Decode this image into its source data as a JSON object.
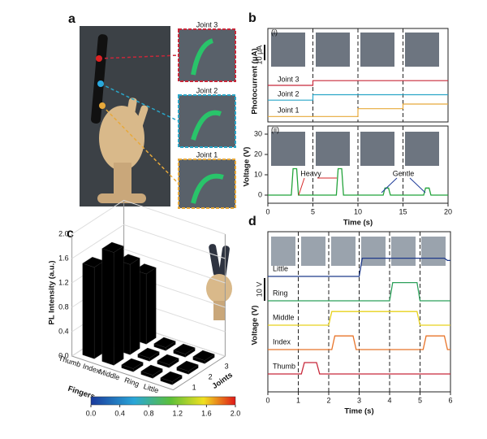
{
  "panel_a": {
    "label": "a",
    "joint_labels": [
      "Joint 3",
      "Joint 2",
      "Joint 1"
    ],
    "joint_colors": [
      "#c8283a",
      "#2aa6c8",
      "#e8a93a"
    ]
  },
  "chart_data": [
    {
      "type": "line",
      "panel": "b",
      "sublabel": "(i)",
      "ylabel": "Photocurrent (μA)",
      "scale_bar": {
        "value": 10,
        "label": "10 μA"
      },
      "x": [
        0,
        5,
        5,
        10,
        10,
        15,
        15,
        20
      ],
      "xlim": [
        0,
        20
      ],
      "ylim": [
        0,
        60
      ],
      "vlines": [
        5,
        10,
        15
      ],
      "series": [
        {
          "name": "Joint 3",
          "color": "#c8283a",
          "values": [
            23.5,
            23.5,
            26.5,
            26.5,
            26.5,
            26.5,
            26.5,
            26.5
          ]
        },
        {
          "name": "Joint 2",
          "color": "#2aa6c8",
          "values": [
            14,
            14,
            17.5,
            17.5,
            17.5,
            17.5,
            17.5,
            17.5
          ]
        },
        {
          "name": "Joint 1",
          "color": "#e8a93a",
          "values": [
            3.5,
            3.5,
            3.5,
            3.5,
            8.5,
            8.5,
            11.5,
            11.5
          ]
        }
      ]
    },
    {
      "type": "line",
      "sublabel": "(ii)",
      "ylabel": "Voltage (V)",
      "xlabel": "Time (s)",
      "x": [
        0,
        2.6,
        2.8,
        3.2,
        3.4,
        7.6,
        7.8,
        8.2,
        8.4,
        12.8,
        13,
        13.4,
        13.6,
        17.3,
        17.5,
        17.9,
        18.1,
        20
      ],
      "xlim": [
        0,
        20
      ],
      "xticks": [
        0,
        5,
        10,
        15,
        20
      ],
      "ylim": [
        -4,
        34
      ],
      "yticks": [
        0,
        10,
        20,
        30
      ],
      "vlines": [
        5,
        10,
        15
      ],
      "series": [
        {
          "color": "#22a33a",
          "values": [
            0,
            0,
            13,
            13,
            0,
            0,
            13,
            13,
            0,
            0,
            3.5,
            3.5,
            0,
            0,
            3.5,
            3.5,
            0,
            0
          ]
        }
      ],
      "annotations": [
        {
          "text": "Heavy",
          "color": "#d62728"
        },
        {
          "text": "Gentle",
          "color": "#1f3c99"
        }
      ]
    },
    {
      "type": "bar3d",
      "panel": "c",
      "categories": [
        "Thumb",
        "Index",
        "Middle",
        "Ring",
        "Little"
      ],
      "joints": [
        "1",
        "2",
        "3"
      ],
      "values": [
        [
          1.5,
          1.35,
          0.05
        ],
        [
          1.85,
          1.48,
          1.15
        ],
        [
          0.05,
          0.05,
          0.05
        ],
        [
          0.05,
          0.05,
          0.05
        ],
        [
          0.05,
          0.05,
          0.05
        ]
      ],
      "xlabel": "Fingers",
      "ylabel": "Joints",
      "zlabel": "PL Intensity (a.u.)",
      "zlim": [
        0,
        2
      ],
      "zticks": [
        {
          "value": 0,
          "label": "0.0"
        },
        {
          "value": 0.4,
          "label": "0.4"
        },
        {
          "value": 0.8,
          "label": "0.8"
        },
        {
          "value": 1.2,
          "label": "1.2"
        },
        {
          "value": 1.6,
          "label": "1.6"
        },
        {
          "value": 2,
          "label": "2.0"
        }
      ],
      "clim": [
        0,
        2
      ],
      "colorbar_ticks": [
        {
          "value": 0,
          "label": "0.0"
        },
        {
          "value": 0.4,
          "label": "0.4"
        },
        {
          "value": 0.8,
          "label": "0.8"
        },
        {
          "value": 1.2,
          "label": "1.2"
        },
        {
          "value": 1.6,
          "label": "1.6"
        },
        {
          "value": 2,
          "label": "2.0"
        }
      ]
    },
    {
      "type": "line",
      "panel": "d",
      "ylabel": "Voltage (V)",
      "xlabel": "Time (s)",
      "scale_bar": {
        "value": 10,
        "label": "10 V"
      },
      "xlim": [
        0,
        6
      ],
      "xticks": [
        0,
        1,
        2,
        3,
        4,
        5,
        6
      ],
      "vlines": [
        1,
        2,
        3,
        4,
        5
      ],
      "series": [
        {
          "name": "Little",
          "color": "#1f3a8a",
          "x": [
            0,
            3,
            3.1,
            5.8,
            5.9,
            6
          ],
          "values": [
            0,
            0,
            8,
            8,
            7,
            7
          ]
        },
        {
          "name": "Ring",
          "color": "#2ca05a",
          "x": [
            0,
            4,
            4.1,
            4.9,
            5,
            6
          ],
          "values": [
            0,
            0,
            8,
            8,
            0,
            0
          ]
        },
        {
          "name": "Middle",
          "color": "#e8d21d",
          "x": [
            0,
            2,
            2.1,
            4.9,
            5,
            6
          ],
          "values": [
            0,
            0,
            6,
            6,
            0,
            0
          ]
        },
        {
          "name": "Index",
          "color": "#e8742a",
          "x": [
            0,
            2.1,
            2.2,
            2.8,
            2.9,
            5.1,
            5.2,
            5.8,
            5.9,
            6
          ],
          "values": [
            0,
            0,
            6,
            6,
            0,
            0,
            6,
            6,
            0,
            0
          ]
        },
        {
          "name": "Thumb",
          "color": "#c8283a",
          "x": [
            0,
            1.1,
            1.2,
            1.6,
            1.7,
            6
          ],
          "values": [
            0,
            0,
            5,
            5,
            0,
            0
          ]
        }
      ]
    }
  ]
}
